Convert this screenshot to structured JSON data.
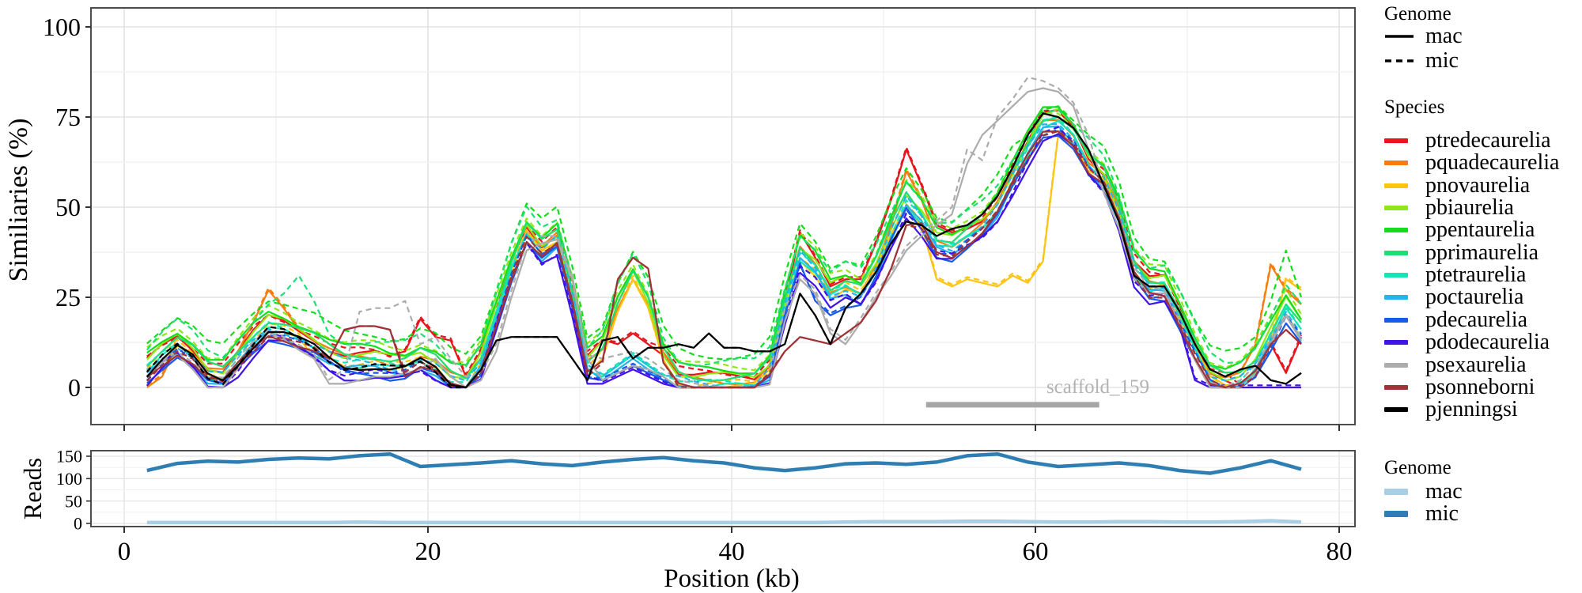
{
  "figure_title": "",
  "xlabel": "Position (kb)",
  "x_ticks": {
    "majors": [
      0,
      20,
      40,
      60,
      80
    ],
    "minors": [
      10,
      30,
      50,
      70
    ],
    "labels": [
      "0",
      "20",
      "40",
      "60",
      "80"
    ]
  },
  "chart_data": {
    "similarity": {
      "type": "line",
      "ylabel": "Similiaries (%)",
      "ylim": [
        0,
        100
      ],
      "yticks": {
        "majors": [
          0,
          25,
          50,
          75,
          100
        ],
        "minors": [
          12.5,
          37.5,
          62.5,
          87.5
        ]
      },
      "x_start": 1.5,
      "x_step": 1,
      "base": [
        5,
        9,
        12,
        9,
        4,
        3,
        8,
        13,
        17,
        16,
        14,
        12,
        9,
        7,
        7,
        7,
        6,
        6,
        8,
        6,
        2,
        1,
        7,
        20,
        33,
        43,
        38,
        41,
        25,
        6,
        10,
        22,
        30,
        22,
        8,
        2,
        1,
        1,
        1,
        1,
        1,
        5,
        22,
        37,
        33,
        26,
        28,
        26,
        33,
        43,
        52,
        47,
        40,
        39,
        42,
        45,
        50,
        58,
        66,
        73,
        74,
        70,
        62,
        58,
        48,
        33,
        28,
        28,
        20,
        11,
        3,
        1,
        2,
        6,
        14,
        22,
        16
      ],
      "genomes": [
        {
          "id": "mac",
          "dash": false
        },
        {
          "id": "mic",
          "dash": true
        }
      ],
      "species": [
        {
          "name": "ptredecaurelia",
          "color": "#e8151c",
          "offset": 2,
          "mic_delta": 1,
          "mac_over": {
            "18.5": 10,
            "19.5": 19,
            "20.5": 14,
            "21.5": 13,
            "22.5": 3,
            "32.5": 12,
            "33.5": 15,
            "34.5": 12,
            "44.5": 43,
            "45.5": 36,
            "46.5": 28,
            "47.5": 30,
            "48.5": 30,
            "49.5": 40,
            "50.5": 52,
            "51.5": 66,
            "52.5": 56,
            "53.5": 45,
            "54.5": 43,
            "73.5": 0,
            "74.5": 3,
            "75.5": 12,
            "76.5": 4,
            "77.5": 14
          },
          "mic_over": {}
        },
        {
          "name": "pquadecaurelia",
          "color": "#f87d0f",
          "offset": 1,
          "mic_delta": 1,
          "mac_over": {
            "1.5": 0,
            "2.5": 3,
            "8.5": 18,
            "9.5": 27,
            "10.5": 22,
            "11.5": 16,
            "51.5": 60,
            "52.5": 52,
            "74.5": 12,
            "75.5": 34,
            "76.5": 27,
            "77.5": 23
          },
          "mic_over": {}
        },
        {
          "name": "pnovaurelia",
          "color": "#ffc411",
          "offset": -1,
          "mic_delta": 1,
          "mac_over": {
            "12.5": 8,
            "53.5": 30,
            "54.5": 28,
            "55.5": 30,
            "56.5": 29,
            "57.5": 28,
            "58.5": 31,
            "59.5": 29,
            "60.5": 35,
            "61.5": 70,
            "62.5": 67,
            "63.5": 60,
            "76.5": 30,
            "77.5": 27
          },
          "mic_over": {}
        },
        {
          "name": "pbiaurelia",
          "color": "#8fe815",
          "offset": 2,
          "mic_delta": 3,
          "mac_over": {},
          "mic_over": {
            "59.5": 68,
            "60.5": 76,
            "61.5": 76,
            "62.5": 72
          }
        },
        {
          "name": "ppentaurelia",
          "color": "#15dd1b",
          "offset": 4,
          "mic_delta": 4,
          "mac_over": {},
          "mic_over": {
            "59.5": 70,
            "60.5": 77,
            "61.5": 78,
            "62.5": 74,
            "75.5": 24,
            "76.5": 38,
            "77.5": 25
          }
        },
        {
          "name": "pprimaurelia",
          "color": "#1edf74",
          "offset": 2,
          "mic_delta": 4,
          "mac_over": {},
          "mic_over": {
            "10.5": 26,
            "11.5": 31,
            "12.5": 24,
            "59.5": 69,
            "60.5": 76,
            "61.5": 77,
            "62.5": 73
          }
        },
        {
          "name": "ptetraurelia",
          "color": "#14e5b4",
          "offset": -1,
          "mic_delta": 1,
          "mac_over": {
            "31.5": 3,
            "32.5": 6,
            "33.5": 9,
            "34.5": 6,
            "35.5": 3
          },
          "mic_over": {}
        },
        {
          "name": "poctaurelia",
          "color": "#23b4ec",
          "offset": -2,
          "mic_delta": 2,
          "mac_over": {
            "31.5": 2,
            "32.5": 5,
            "33.5": 8,
            "34.5": 5,
            "35.5": 2
          },
          "mic_over": {}
        },
        {
          "name": "pdecaurelia",
          "color": "#1a5ae8",
          "offset": -3,
          "mic_delta": 1,
          "mac_over": {
            "31.5": 2,
            "32.5": 4,
            "33.5": 6,
            "34.5": 4,
            "35.5": 2,
            "45.5": 24,
            "46.5": 20,
            "47.5": 22
          },
          "mic_over": {}
        },
        {
          "name": "pdodecaurelia",
          "color": "#4013e8",
          "offset": -4,
          "mic_delta": 1,
          "mac_over": {
            "31.5": 1,
            "32.5": 3,
            "33.5": 5,
            "34.5": 3,
            "35.5": 1,
            "70.5": 2,
            "71.5": 0,
            "72.5": 0,
            "73.5": 0,
            "74.5": 0,
            "75.5": 0,
            "76.5": 0,
            "77.5": 0
          },
          "mic_over": {}
        },
        {
          "name": "psexaurelia",
          "color": "#acacac",
          "offset": -3,
          "mic_delta": 2,
          "mac_over": {
            "12.5": 8,
            "13.5": 1,
            "14.5": 1,
            "15.5": 2,
            "16.5": 3,
            "17.5": 3,
            "18.5": 4,
            "19.5": 5,
            "20.5": 8,
            "21.5": 3,
            "22.5": 0,
            "23.5": 2,
            "24.5": 10,
            "25.5": 25,
            "26.5": 38,
            "27.5": 40,
            "28.5": 41,
            "29.5": 30,
            "30.5": 8,
            "31.5": 2,
            "32.5": 4,
            "33.5": 6,
            "34.5": 5,
            "35.5": 3,
            "44.5": 30,
            "45.5": 26,
            "46.5": 15,
            "47.5": 12,
            "48.5": 18,
            "49.5": 25,
            "50.5": 31,
            "51.5": 38,
            "52.5": 42,
            "53.5": 45,
            "54.5": 48,
            "55.5": 62,
            "56.5": 70,
            "57.5": 74,
            "58.5": 78,
            "59.5": 82,
            "60.5": 83,
            "61.5": 82,
            "62.5": 78,
            "63.5": 66,
            "64.5": 54
          },
          "mic_over": {
            "14.5": 5,
            "15.5": 21,
            "16.5": 22,
            "17.5": 22,
            "18.5": 24,
            "19.5": 12,
            "20.5": 14,
            "21.5": 8,
            "22.5": 3,
            "23.5": 4,
            "24.5": 12,
            "25.5": 27,
            "26.5": 40,
            "27.5": 42,
            "28.5": 42,
            "29.5": 31,
            "30.5": 9,
            "31.5": 8,
            "32.5": 9,
            "33.5": 10,
            "34.5": 8,
            "35.5": 5,
            "54.5": 50,
            "55.5": 66,
            "56.5": 63,
            "57.5": 75,
            "58.5": 80,
            "59.5": 86,
            "60.5": 85,
            "61.5": 83,
            "62.5": 79,
            "63.5": 70,
            "64.5": 55
          }
        },
        {
          "name": "psonneborni",
          "color": "#a13238",
          "offset": -2,
          "mic_delta": 0,
          "mac_over": {
            "14.5": 16,
            "15.5": 17,
            "16.5": 17,
            "17.5": 16,
            "32.5": 30,
            "33.5": 36,
            "34.5": 33,
            "43.5": 10,
            "44.5": 14,
            "45.5": 13,
            "46.5": 12,
            "47.5": 15,
            "48.5": 18,
            "49.5": 24,
            "50.5": 33,
            "51.5": 45,
            "75.5": 12,
            "76.5": 16,
            "77.5": 12
          },
          "mic_over": {}
        },
        {
          "name": "pjenningsi",
          "color": "#000000",
          "offset": -1,
          "mic_delta": 0,
          "mac_over": {
            "23.5": 5,
            "24.5": 13,
            "25.5": 14,
            "26.5": 14,
            "27.5": 14,
            "28.5": 14,
            "29.5": 8,
            "30.5": 2,
            "31.5": 13,
            "32.5": 14,
            "33.5": 8,
            "34.5": 11,
            "35.5": 11,
            "36.5": 12,
            "37.5": 11,
            "38.5": 15,
            "39.5": 11,
            "40.5": 11,
            "41.5": 10,
            "42.5": 10,
            "43.5": 12,
            "44.5": 26,
            "45.5": 20,
            "46.5": 12,
            "47.5": 22,
            "48.5": 26,
            "49.5": 32,
            "50.5": 40,
            "51.5": 46,
            "52.5": 45,
            "53.5": 42,
            "54.5": 44,
            "55.5": 45,
            "56.5": 48,
            "57.5": 53,
            "58.5": 61,
            "59.5": 70,
            "60.5": 76,
            "61.5": 75,
            "62.5": 72,
            "63.5": 66,
            "64.5": 56,
            "65.5": 46,
            "66.5": 31,
            "67.5": 28,
            "68.5": 28,
            "69.5": 21,
            "70.5": 12,
            "71.5": 5,
            "72.5": 3,
            "73.5": 5,
            "74.5": 6,
            "75.5": 2,
            "76.5": 1,
            "77.5": 4
          },
          "mic_over": {}
        }
      ],
      "annotation": {
        "text": "scaffold_159",
        "bar_x1": 52.8,
        "bar_x2": 64.2,
        "bar_y": -4.8,
        "label_x": 64.1,
        "label_y": -1.2,
        "color": "#a6a6a6",
        "text_color": "#b3b3b3"
      }
    },
    "reads": {
      "type": "line",
      "ylabel": "Reads",
      "ylim": [
        0,
        150
      ],
      "yticks": {
        "majors": [
          0,
          50,
          100,
          150
        ],
        "minors": [
          25,
          75,
          125
        ]
      },
      "x_start": 1.5,
      "x_step": 2,
      "series": [
        {
          "name": "mac",
          "color": "#a9cfe5",
          "values": [
            2,
            2,
            2,
            2,
            2,
            2,
            2,
            3,
            2,
            2,
            2,
            2,
            2,
            2,
            2,
            2,
            2,
            2,
            2,
            2,
            2,
            2,
            2,
            3,
            4,
            4,
            4,
            5,
            5,
            4,
            3,
            3,
            4,
            4,
            3,
            3,
            4,
            6,
            3
          ]
        },
        {
          "name": "mic",
          "color": "#2e7eb3",
          "values": [
            118,
            134,
            139,
            137,
            143,
            146,
            144,
            151,
            155,
            127,
            131,
            135,
            140,
            133,
            129,
            137,
            143,
            147,
            140,
            135,
            124,
            118,
            124,
            133,
            135,
            132,
            137,
            151,
            155,
            137,
            127,
            131,
            135,
            129,
            118,
            112,
            124,
            140,
            121
          ]
        }
      ]
    }
  },
  "legend_top": {
    "genome_title": "Genome",
    "genome_items": [
      {
        "label": "mac",
        "dash": false
      },
      {
        "label": "mic",
        "dash": true
      }
    ],
    "species_title": "Species"
  },
  "legend_bottom": {
    "title": "Genome",
    "items": [
      {
        "label": "mac",
        "color": "#a9cfe5"
      },
      {
        "label": "mic",
        "color": "#2e7eb3"
      }
    ]
  }
}
